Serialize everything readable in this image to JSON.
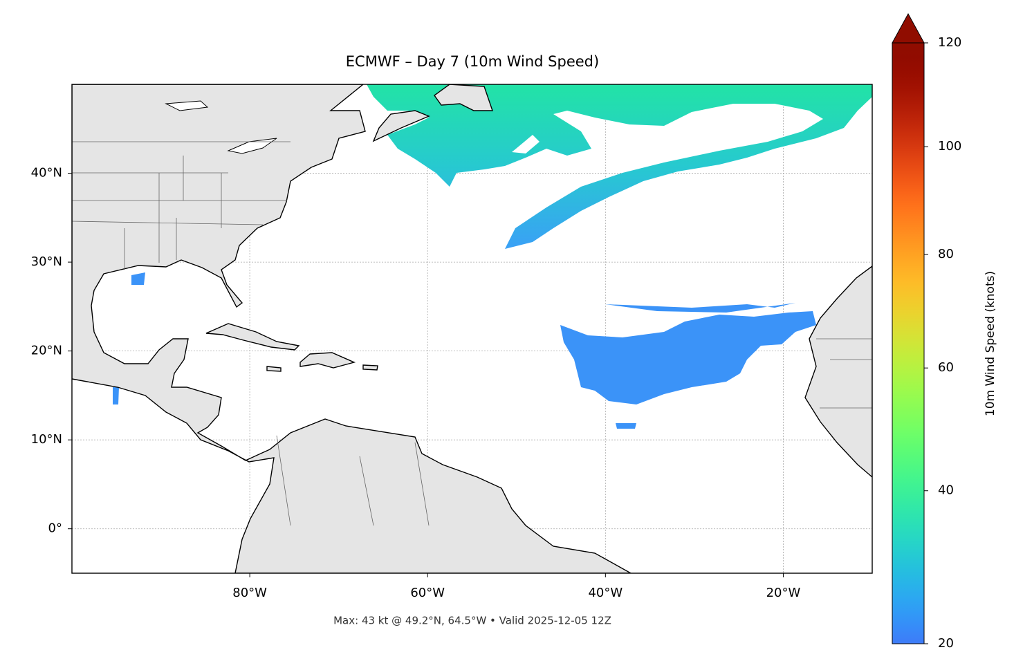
{
  "chart_data": {
    "type": "map",
    "title": "ECMWF – Day 7 (10m Wind Speed)",
    "footnote": "Max: 43 kt @ 49.2°N, 64.5°W • Valid 2025-12-05 12Z",
    "xlim": [
      -100,
      -10
    ],
    "ylim": [
      -5,
      50
    ],
    "xticks": [
      {
        "value": -80,
        "label": "80°W"
      },
      {
        "value": -60,
        "label": "60°W"
      },
      {
        "value": -40,
        "label": "40°W"
      },
      {
        "value": -20,
        "label": "20°W"
      }
    ],
    "yticks": [
      {
        "value": 0,
        "label": "0°"
      },
      {
        "value": 10,
        "label": "10°N"
      },
      {
        "value": 20,
        "label": "20°N"
      },
      {
        "value": 30,
        "label": "30°N"
      },
      {
        "value": 40,
        "label": "40°N"
      }
    ],
    "grid": true,
    "colorbar": {
      "label": "10m Wind Speed (knots)",
      "lim": [
        20,
        120
      ],
      "ticks": [
        20,
        40,
        60,
        80,
        100,
        120
      ],
      "norm": "power",
      "gamma": 0.85,
      "colormap": "turbo",
      "extend": "max"
    }
  }
}
